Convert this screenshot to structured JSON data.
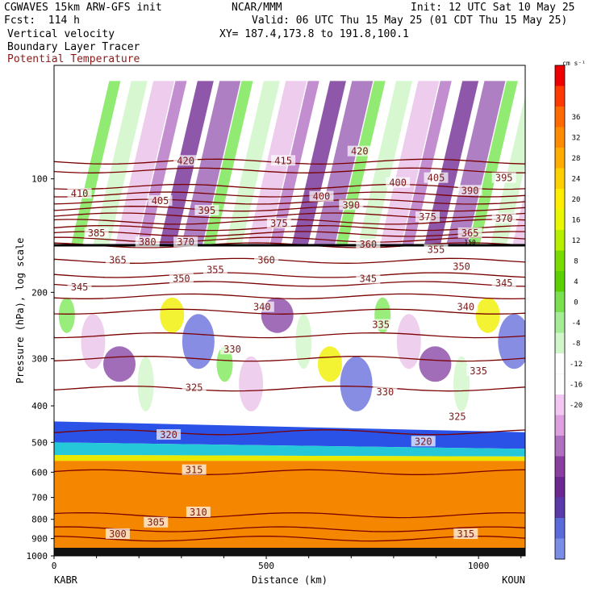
{
  "header": {
    "model": "CGWAVES 15km ARW-GFS init",
    "fcst": "Fcst:  114 h",
    "org": "NCAR/MMM",
    "init": "Init: 12 UTC Sat 10 May 25",
    "valid": "Valid: 06 UTC Thu 15 May 25 (01 CDT Thu 15 May 25)",
    "xy": "XY= 187.4,173.8 to 191.8,100.1",
    "fields": [
      "Vertical velocity",
      "Boundary Layer Tracer",
      "Potential Temperature"
    ]
  },
  "colors": {
    "theta_contour": "#7a0000",
    "theta_label": "#7a1a1a",
    "terrain": "#f58700"
  },
  "chart_data": {
    "type": "heatmap",
    "ylabel": "Pressure (hPa), log scale",
    "xlabel": "Distance (km)",
    "x_ticks": [
      0,
      500,
      1000
    ],
    "x_range": [
      0,
      1110
    ],
    "y_scale": "log",
    "y_ticks": [
      100,
      200,
      300,
      400,
      500,
      600,
      700,
      800,
      900,
      1000
    ],
    "y_range": [
      50,
      1000
    ],
    "endpoint_labels": [
      "KABR",
      "KOUN"
    ],
    "colorbar": {
      "unit": "cm s⁻¹",
      "ticks": [
        36,
        32,
        28,
        24,
        20,
        16,
        12,
        8,
        4,
        0,
        -4,
        -8,
        -12,
        -16,
        -20
      ],
      "colors": [
        "#ee0000",
        "#ff3a00",
        "#ff6a00",
        "#ff8c00",
        "#ffad00",
        "#ffd000",
        "#ffee00",
        "#e8f800",
        "#b8ef00",
        "#78dc00",
        "#5ad000",
        "#7ae050",
        "#a5ec95",
        "#d0f6ca",
        "#ffffff",
        "#ffffff",
        "#f2c8f2",
        "#dd9fdd",
        "#b070c0",
        "#8a3ea0",
        "#6a2890",
        "#5a3aa8",
        "#5a6ad8",
        "#7a8ee8"
      ]
    },
    "theta_contours": [
      {
        "level": 420,
        "p": 90
      },
      {
        "level": 415,
        "p": 95
      },
      {
        "level": 410,
        "p": 105
      },
      {
        "level": 405,
        "p": 110
      },
      {
        "level": 400,
        "p": 115
      },
      {
        "level": 395,
        "p": 120
      },
      {
        "level": 390,
        "p": 125
      },
      {
        "level": 385,
        "p": 135
      },
      {
        "level": 380,
        "p": 140
      },
      {
        "level": 375,
        "p": 130
      },
      {
        "level": 370,
        "p": 145
      },
      {
        "level": 365,
        "p": 150
      },
      {
        "level": 360,
        "p": 165
      },
      {
        "level": 355,
        "p": 180
      },
      {
        "level": 350,
        "p": 190
      },
      {
        "level": 345,
        "p": 205
      },
      {
        "level": 340,
        "p": 225
      },
      {
        "level": 335,
        "p": 260
      },
      {
        "level": 330,
        "p": 300
      },
      {
        "level": 325,
        "p": 360
      },
      {
        "level": 320,
        "p": 470
      },
      {
        "level": 315,
        "p": 600
      },
      {
        "level": 310,
        "p": 780
      },
      {
        "level": 305,
        "p": 850
      },
      {
        "level": 300,
        "p": 900
      }
    ],
    "tropopause_marker": "150",
    "contour_labels": [
      {
        "t": "420",
        "x": 310,
        "p": 90
      },
      {
        "t": "415",
        "x": 540,
        "p": 90
      },
      {
        "t": "420",
        "x": 720,
        "p": 85
      },
      {
        "t": "410",
        "x": 60,
        "p": 110
      },
      {
        "t": "405",
        "x": 250,
        "p": 115
      },
      {
        "t": "395",
        "x": 360,
        "p": 122
      },
      {
        "t": "400",
        "x": 630,
        "p": 112
      },
      {
        "t": "390",
        "x": 700,
        "p": 118
      },
      {
        "t": "400",
        "x": 810,
        "p": 103
      },
      {
        "t": "405",
        "x": 900,
        "p": 100
      },
      {
        "t": "390",
        "x": 980,
        "p": 108
      },
      {
        "t": "395",
        "x": 1060,
        "p": 100
      },
      {
        "t": "385",
        "x": 100,
        "p": 140
      },
      {
        "t": "380",
        "x": 220,
        "p": 148
      },
      {
        "t": "370",
        "x": 310,
        "p": 148
      },
      {
        "t": "375",
        "x": 530,
        "p": 132
      },
      {
        "t": "375",
        "x": 880,
        "p": 127
      },
      {
        "t": "365",
        "x": 980,
        "p": 140
      },
      {
        "t": "370",
        "x": 1060,
        "p": 128
      },
      {
        "t": "365",
        "x": 150,
        "p": 165
      },
      {
        "t": "360",
        "x": 500,
        "p": 165
      },
      {
        "t": "360",
        "x": 740,
        "p": 150
      },
      {
        "t": "355",
        "x": 900,
        "p": 155
      },
      {
        "t": "350",
        "x": 960,
        "p": 172
      },
      {
        "t": "355",
        "x": 380,
        "p": 175
      },
      {
        "t": "350",
        "x": 300,
        "p": 185
      },
      {
        "t": "345",
        "x": 60,
        "p": 195
      },
      {
        "t": "345",
        "x": 740,
        "p": 185
      },
      {
        "t": "345",
        "x": 1060,
        "p": 190
      },
      {
        "t": "340",
        "x": 490,
        "p": 220
      },
      {
        "t": "340",
        "x": 970,
        "p": 220
      },
      {
        "t": "335",
        "x": 770,
        "p": 245
      },
      {
        "t": "335",
        "x": 1000,
        "p": 325
      },
      {
        "t": "330",
        "x": 420,
        "p": 285
      },
      {
        "t": "330",
        "x": 780,
        "p": 370
      },
      {
        "t": "325",
        "x": 330,
        "p": 360
      },
      {
        "t": "325",
        "x": 950,
        "p": 430
      },
      {
        "t": "320",
        "x": 270,
        "p": 480
      },
      {
        "t": "320",
        "x": 870,
        "p": 500
      },
      {
        "t": "315",
        "x": 330,
        "p": 595
      },
      {
        "t": "315",
        "x": 970,
        "p": 880
      },
      {
        "t": "310",
        "x": 340,
        "p": 770
      },
      {
        "t": "305",
        "x": 240,
        "p": 820
      },
      {
        "t": "300",
        "x": 150,
        "p": 880
      }
    ]
  }
}
